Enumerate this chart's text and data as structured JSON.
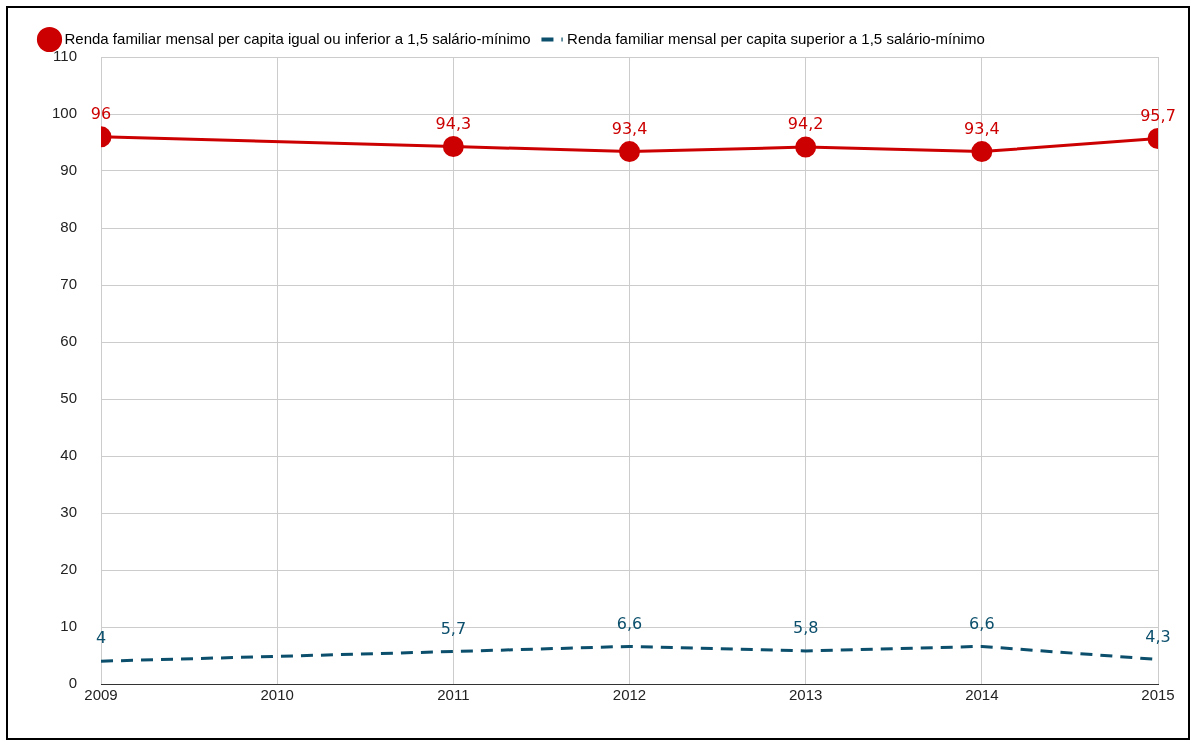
{
  "chart_data": {
    "type": "line",
    "x": [
      2009,
      2011,
      2012,
      2013,
      2014,
      2015
    ],
    "xlim": [
      2009,
      2015
    ],
    "xticks": [
      2009,
      2010,
      2011,
      2012,
      2013,
      2014,
      2015
    ],
    "ylim": [
      0,
      110
    ],
    "yticks": [
      0,
      10,
      20,
      30,
      40,
      50,
      60,
      70,
      80,
      90,
      100,
      110
    ],
    "grid": true,
    "legend": "top",
    "series": [
      {
        "name": "Renda familiar mensal per capita igual ou inferior a 1,5 salário-mínimo",
        "color": "#cc0000",
        "marker": "circle",
        "line_style": "solid",
        "values": [
          96,
          94.3,
          93.4,
          94.2,
          93.4,
          95.7
        ],
        "value_labels": [
          "96",
          "94,3",
          "93,4",
          "94,2",
          "93,4",
          "95,7"
        ]
      },
      {
        "name": "Renda familiar mensal per capita superior a 1,5 salário-mínimo",
        "color": "#0b4f6c",
        "marker": "none",
        "line_style": "dashed",
        "values": [
          4,
          5.7,
          6.6,
          5.8,
          6.6,
          4.3
        ],
        "value_labels": [
          "4",
          "5,7",
          "6,6",
          "5,8",
          "6,6",
          "4,3"
        ]
      }
    ]
  }
}
